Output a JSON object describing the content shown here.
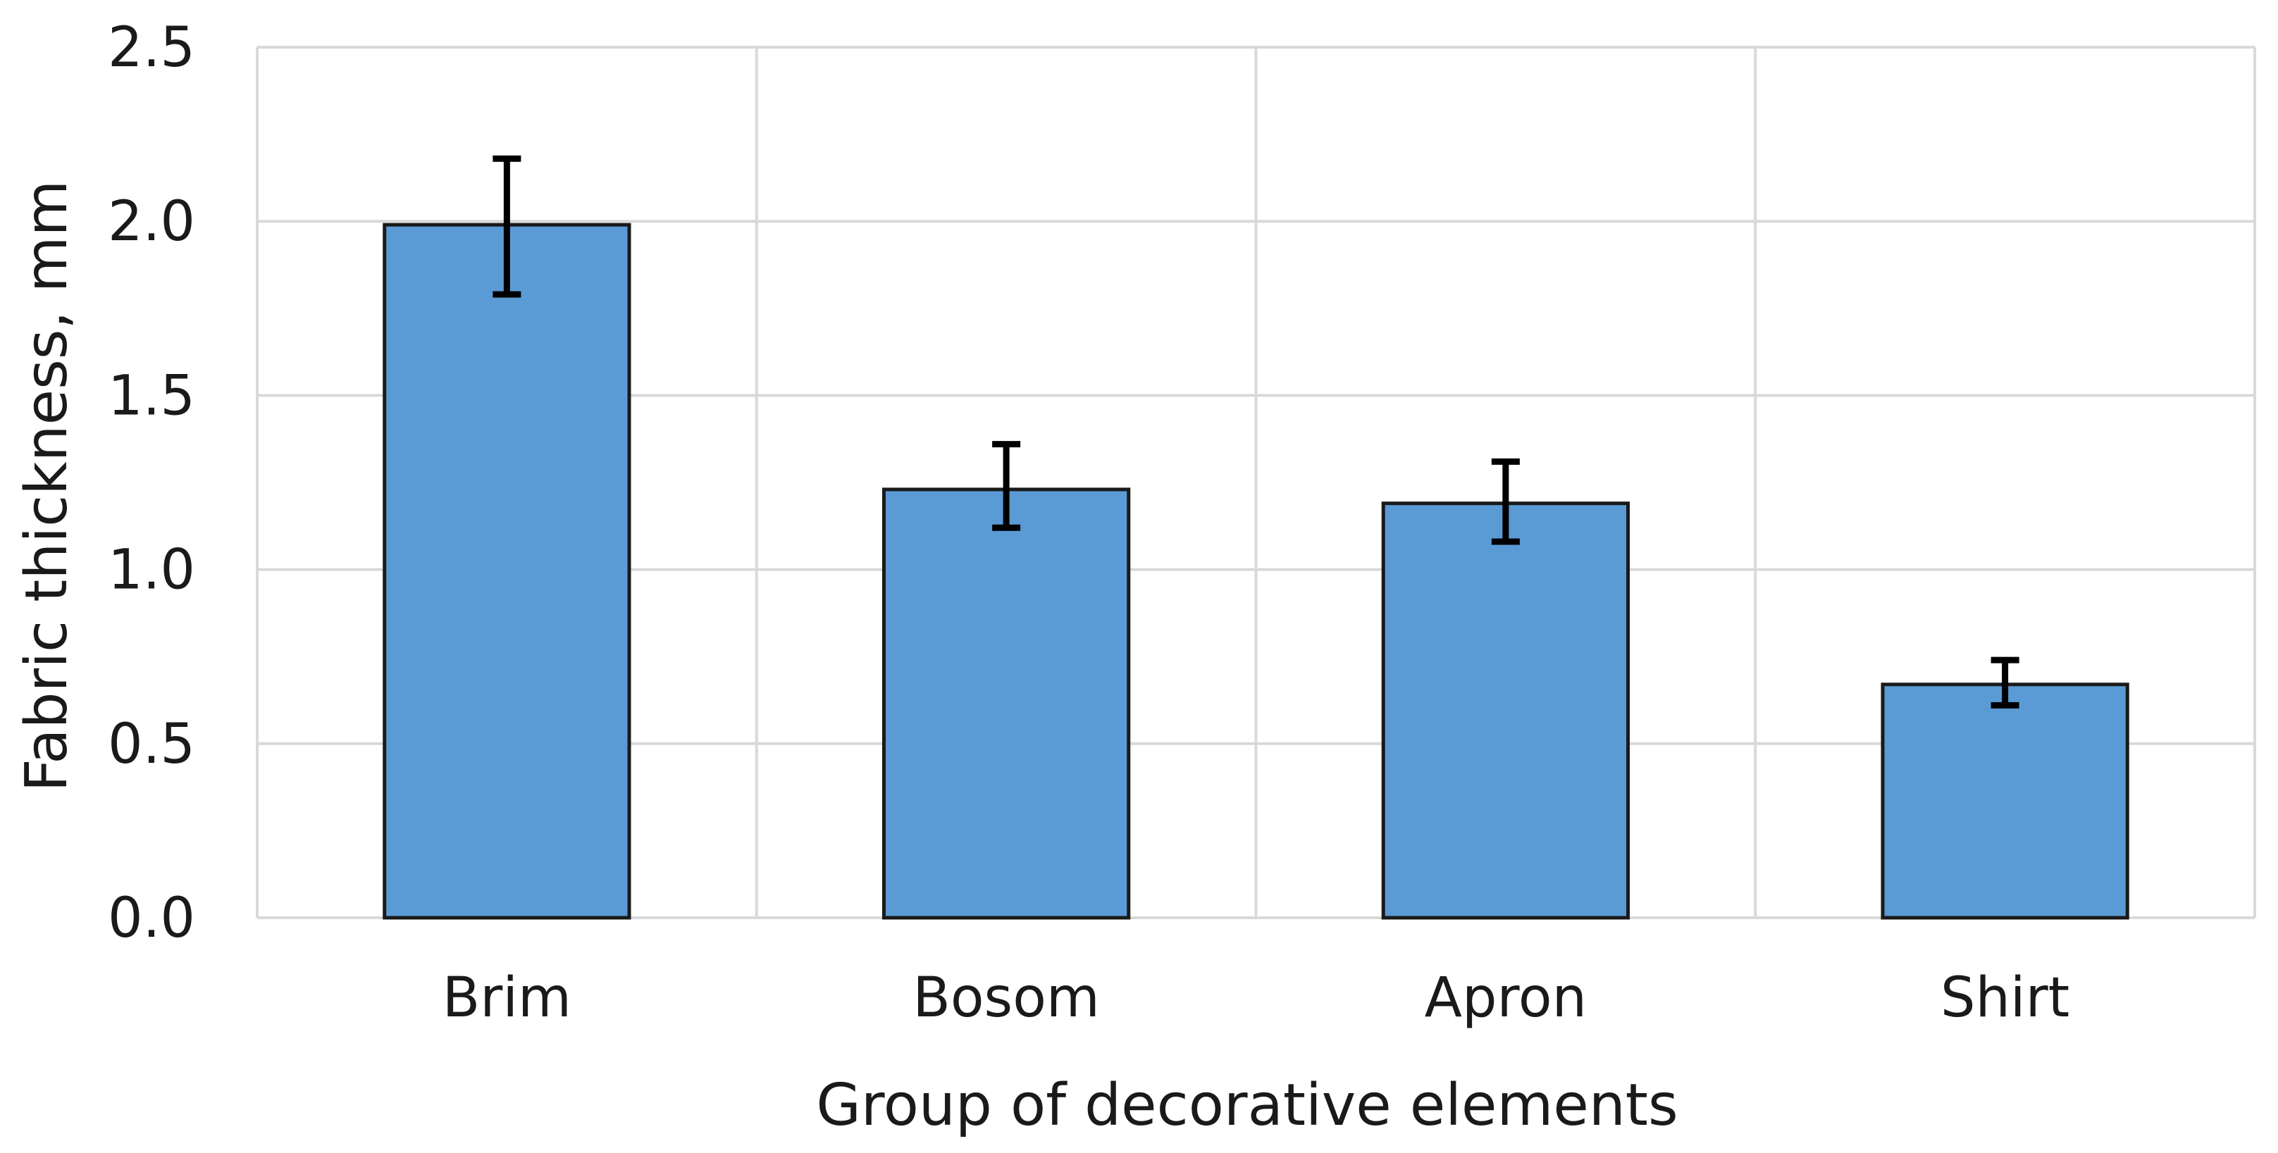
{
  "chart_data": {
    "type": "bar",
    "title": "",
    "xlabel": "Group of decorative elements",
    "ylabel": "Fabric thickness, mm",
    "categories": [
      "Brim",
      "Bosom",
      "Apron",
      "Shirt"
    ],
    "series": [
      {
        "values": [
          1.99,
          1.23,
          1.19,
          0.67
        ],
        "error_low": [
          1.79,
          1.12,
          1.08,
          0.61
        ],
        "error_high": [
          2.18,
          1.36,
          1.31,
          0.74
        ]
      }
    ],
    "ylim": [
      0,
      2.5
    ],
    "yticks": [
      "0.0",
      "0.5",
      "1.0",
      "1.5",
      "2.0",
      "2.5"
    ],
    "ytick_values": [
      0,
      0.5,
      1.0,
      1.5,
      2.0,
      2.5
    ],
    "grid": true,
    "legend": "none",
    "colors": {
      "bar_fill": "#5b9bd5",
      "bar_stroke": "#1a1a1a",
      "grid": "#d9d9d9",
      "error_bar": "#000000",
      "text": "#1a1a1a"
    }
  }
}
